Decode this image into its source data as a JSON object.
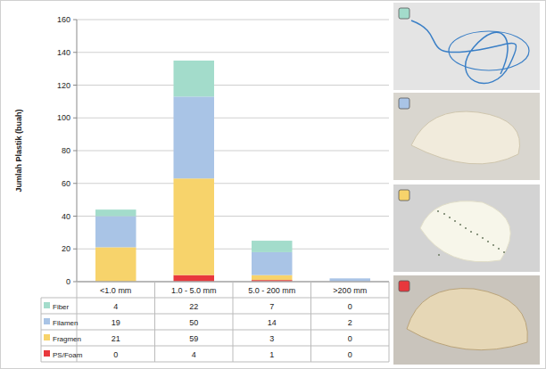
{
  "chart_data": {
    "type": "bar",
    "stacked": true,
    "grid": true,
    "legend": "bottom",
    "y_label": "Jumlah Plastik (buah)",
    "categories": [
      "<1.0 mm",
      "1.0 - 5.0 mm",
      "5.0 - 200 mm",
      ">200 mm"
    ],
    "series": [
      {
        "name": "Fiber",
        "color": "#a3dccb",
        "values": [
          4,
          22,
          7,
          0
        ]
      },
      {
        "name": "Filamen",
        "color": "#a9c4e6",
        "values": [
          19,
          50,
          14,
          2
        ]
      },
      {
        "name": "Fragmen",
        "color": "#f7d36b",
        "values": [
          21,
          59,
          3,
          0
        ]
      },
      {
        "name": "PS/Foam",
        "color": "#e8383d",
        "values": [
          0,
          4,
          1,
          0
        ]
      }
    ],
    "ylim": [
      0,
      160
    ],
    "yticks": [
      0,
      20,
      40,
      60,
      80,
      100,
      120,
      140,
      160
    ]
  }
}
